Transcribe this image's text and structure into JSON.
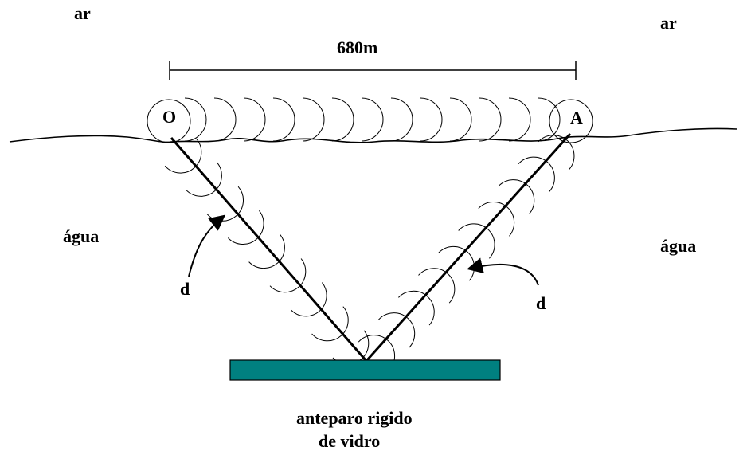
{
  "labels": {
    "air_left": "ar",
    "air_right": "ar",
    "distance": "680m",
    "point_o": "O",
    "point_a": "A",
    "water_left": "água",
    "water_right": "água",
    "path_left": "d",
    "path_right": "d",
    "barrier_line1": "anteparo rigido",
    "barrier_line2": "de vidro"
  },
  "colors": {
    "barrier": "#008080",
    "ink": "#000000"
  },
  "wavefronts": {
    "surface_count": 13,
    "left_path_count": 9,
    "right_path_count": 10
  }
}
